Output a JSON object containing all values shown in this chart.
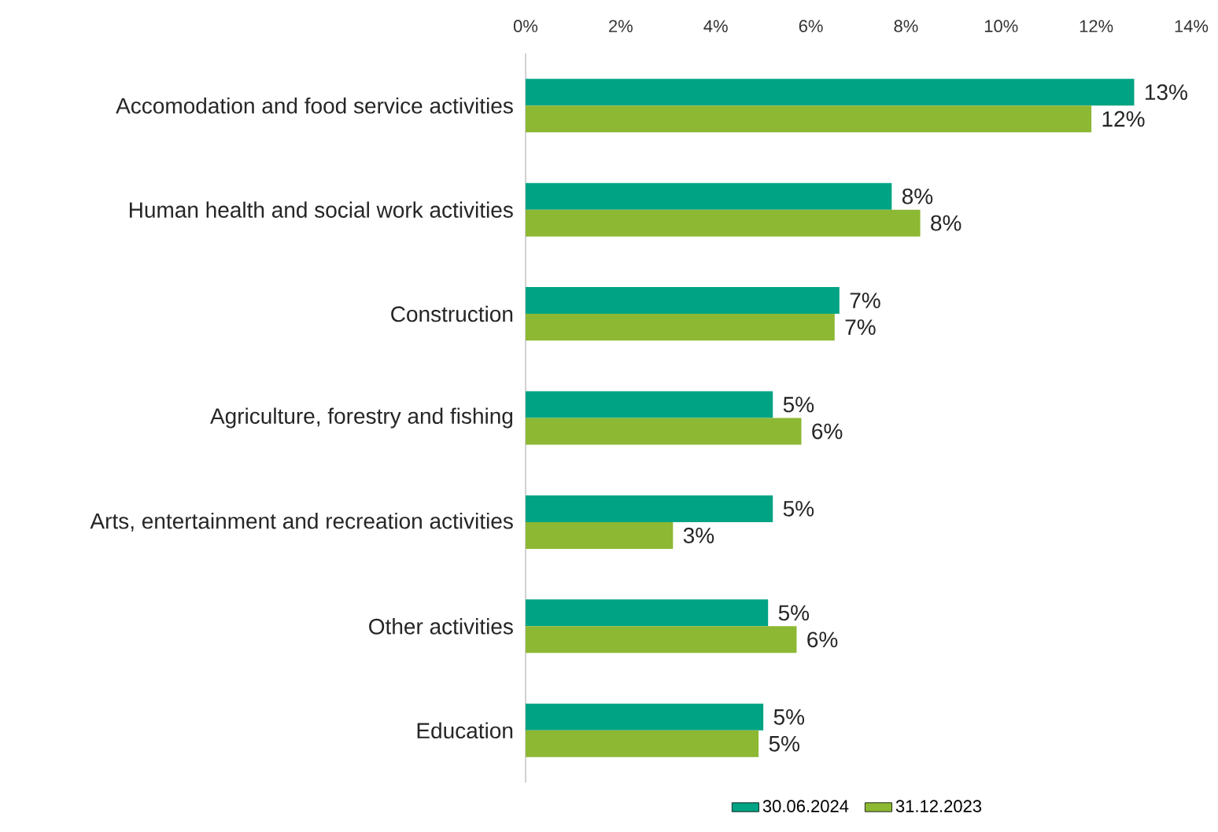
{
  "chart_data": {
    "type": "bar",
    "orientation": "horizontal",
    "categories": [
      "Accomodation and food service activities",
      "Human health and social work activities",
      "Construction",
      "Agriculture, forestry and fishing",
      "Arts, entertainment and recreation activities",
      "Other activities",
      "Education"
    ],
    "series": [
      {
        "name": "30.06.2024",
        "color": "#00a383",
        "values": [
          12.8,
          7.7,
          6.6,
          5.2,
          5.2,
          5.1,
          5.0
        ],
        "value_labels": [
          "13%",
          "8%",
          "7%",
          "5%",
          "5%",
          "5%",
          "5%"
        ]
      },
      {
        "name": "31.12.2023",
        "color": "#8cb833",
        "values": [
          11.9,
          8.3,
          6.5,
          5.8,
          3.1,
          5.7,
          4.9
        ],
        "value_labels": [
          "12%",
          "8%",
          "7%",
          "6%",
          "3%",
          "6%",
          "5%"
        ]
      }
    ],
    "xlim": [
      0,
      14
    ],
    "xticks": [
      {
        "value": 0,
        "label": "0%"
      },
      {
        "value": 2,
        "label": "2%"
      },
      {
        "value": 4,
        "label": "4%"
      },
      {
        "value": 6,
        "label": "6%"
      },
      {
        "value": 8,
        "label": "8%"
      },
      {
        "value": 10,
        "label": "10%"
      },
      {
        "value": 12,
        "label": "12%"
      },
      {
        "value": 14,
        "label": "14%"
      }
    ],
    "grid": false,
    "legend": "bottom"
  }
}
